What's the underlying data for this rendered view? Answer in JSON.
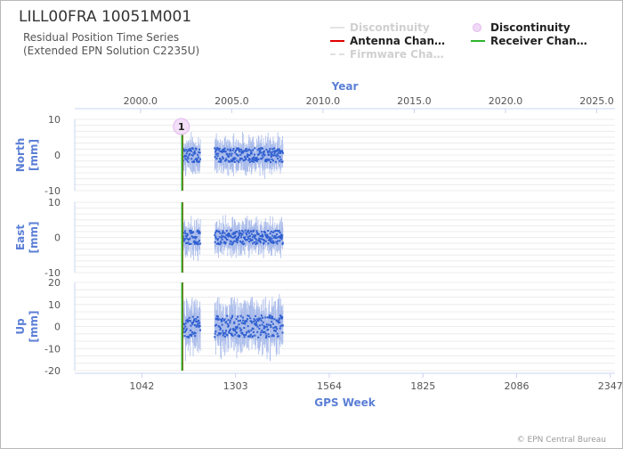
{
  "header": {
    "title": "LILL00FRA 10051M001",
    "subtitle_line1": "Residual Position Time Series",
    "subtitle_line2": "(Extended EPN Solution C2235U)"
  },
  "legend": [
    {
      "label": "Discontinuity",
      "color": "#dcdcdc",
      "style": "line",
      "muted": true
    },
    {
      "label": "Discontinuity",
      "color": "#e3b8ef",
      "style": "circle",
      "muted": false
    },
    {
      "label": "Antenna Chan…",
      "color": "#e00000",
      "style": "line",
      "muted": false
    },
    {
      "label": "Receiver Chan…",
      "color": "#2cb52c",
      "style": "line",
      "muted": false
    },
    {
      "label": "Firmware Cha…",
      "color": "#dcdcdc",
      "style": "dash",
      "muted": true
    }
  ],
  "credits": "© EPN Central Bureau",
  "colors": {
    "axis_title": "#5b7fd6",
    "series": "#2f5fd0",
    "error_bar": "#a9bbea",
    "antenna": "#e00000",
    "receiver": "#2cb52c",
    "discontinuity_marker": "#e3b8ef"
  },
  "chart_data": {
    "type": "scatter",
    "top_axis": {
      "title": "Year",
      "ticks": [
        "2000.0",
        "2005.0",
        "2010.0",
        "2015.0",
        "2020.0",
        "2025.0"
      ],
      "values": [
        2000,
        2005,
        2010,
        2015,
        2020,
        2025
      ],
      "range": [
        1996.4,
        2026.0
      ]
    },
    "bottom_axis": {
      "title": "GPS Week",
      "ticks": [
        "1042",
        "1303",
        "1564",
        "1825",
        "2086",
        "2347"
      ],
      "values": [
        1042,
        1303,
        1564,
        1825,
        2086,
        2347
      ],
      "range": [
        855,
        2360
      ]
    },
    "panels": [
      {
        "name": "North",
        "ylabel": "North\n[mm]",
        "ylim": [
          -10,
          10
        ],
        "ticks": [
          10,
          0,
          -10
        ],
        "tick_labels": [
          "10",
          "0",
          "-10"
        ],
        "amplitude": 2.0,
        "errbar": 3.0
      },
      {
        "name": "East",
        "ylabel": "East\n[mm]",
        "ylim": [
          -10,
          10
        ],
        "ticks": [
          10,
          0,
          -10
        ],
        "tick_labels": [
          "10",
          "0",
          "-10"
        ],
        "amplitude": 2.0,
        "errbar": 3.0
      },
      {
        "name": "Up",
        "ylabel": "Up\n[mm]",
        "ylim": [
          -20,
          20
        ],
        "ticks": [
          20,
          10,
          0,
          -10,
          -20
        ],
        "tick_labels": [
          "20",
          "10",
          "0",
          "-10",
          "-20"
        ],
        "amplitude": 5.0,
        "errbar": 7.0
      }
    ],
    "data_segments": [
      {
        "start_week": 1157,
        "end_week": 1205
      },
      {
        "start_week": 1245,
        "end_week": 1435
      }
    ],
    "events": [
      {
        "type": "antenna",
        "week": 1155
      },
      {
        "type": "receiver",
        "week": 1154
      }
    ],
    "discontinuity_marker": {
      "label": "1",
      "week": 1152,
      "panel": "North",
      "value": 8
    },
    "grid": true
  }
}
